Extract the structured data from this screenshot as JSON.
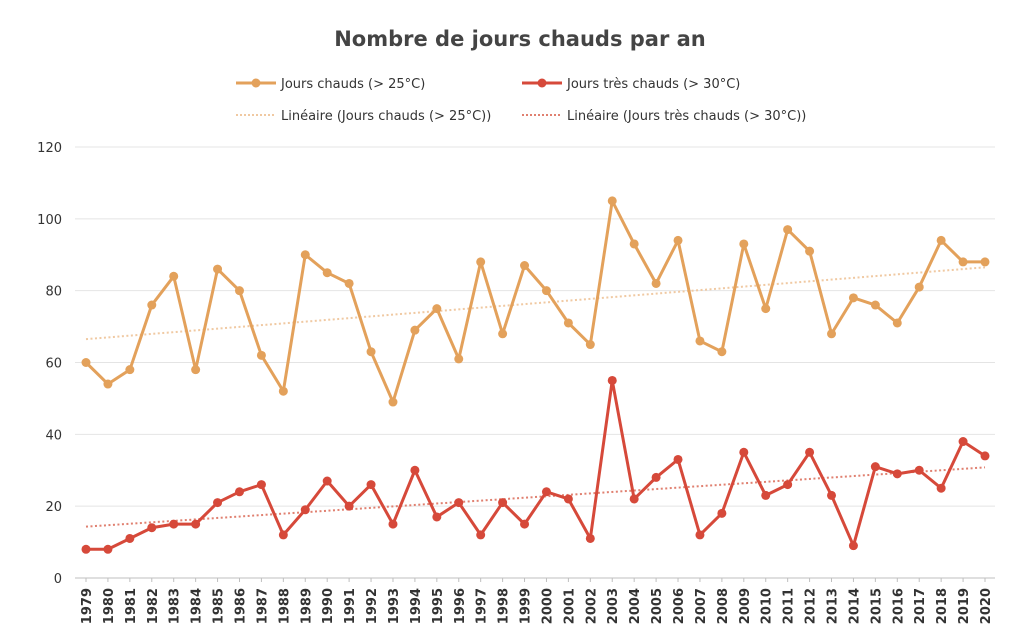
{
  "chart_data": {
    "type": "line",
    "title": "Nombre de jours chauds par an",
    "xlabel": "",
    "ylabel": "",
    "ylim": [
      0,
      120
    ],
    "yticks": [
      0,
      20,
      40,
      60,
      80,
      100,
      120
    ],
    "grid": true,
    "legend_position": "top",
    "categories": [
      "1979",
      "1980",
      "1981",
      "1982",
      "1983",
      "1984",
      "1985",
      "1986",
      "1987",
      "1988",
      "1989",
      "1990",
      "1991",
      "1992",
      "1993",
      "1994",
      "1995",
      "1996",
      "1997",
      "1998",
      "1999",
      "2000",
      "2001",
      "2002",
      "2003",
      "2004",
      "2005",
      "2006",
      "2007",
      "2008",
      "2009",
      "2010",
      "2011",
      "2012",
      "2013",
      "2014",
      "2015",
      "2016",
      "2017",
      "2018",
      "2019",
      "2020"
    ],
    "series": [
      {
        "name": "Jours chauds (> 25°C)",
        "color": "#E3A15B",
        "values": [
          60,
          54,
          58,
          76,
          84,
          58,
          86,
          80,
          62,
          52,
          90,
          85,
          82,
          63,
          49,
          69,
          75,
          61,
          88,
          68,
          87,
          80,
          71,
          65,
          105,
          93,
          82,
          94,
          66,
          63,
          93,
          75,
          97,
          91,
          68,
          78,
          76,
          71,
          81,
          94,
          88,
          88
        ]
      },
      {
        "name": "Jours très chauds (> 30°C)",
        "color": "#D6493A",
        "values": [
          8,
          8,
          11,
          14,
          15,
          15,
          21,
          24,
          26,
          12,
          19,
          27,
          20,
          26,
          15,
          30,
          17,
          21,
          12,
          21,
          15,
          24,
          22,
          11,
          55,
          22,
          28,
          33,
          12,
          18,
          35,
          23,
          26,
          35,
          23,
          9,
          31,
          29,
          30,
          25,
          38,
          34
        ]
      }
    ],
    "trendlines": [
      {
        "name": "Linéaire (Jours chauds (> 25°C))",
        "color": "#F0C9A2",
        "start": 66.5,
        "end": 86.5
      },
      {
        "name": "Linéaire (Jours très chauds (> 30°C))",
        "color": "#E08070",
        "start": 14.3,
        "end": 30.8
      }
    ]
  }
}
